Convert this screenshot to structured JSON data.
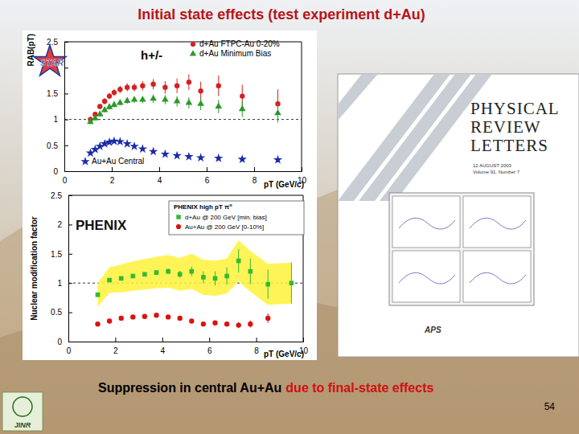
{
  "slide": {
    "title": "Initial state effects (test experiment d+Au)",
    "caption": [
      "Suppression in central Au+Au",
      "due to final-state effects"
    ],
    "page_number": 54,
    "logo": "JINR",
    "cover": {
      "lines": [
        "PHYSICAL",
        "REVIEW",
        "LETTERS"
      ],
      "date": "12 AUGUST 2003",
      "issue": "Volume 91, Number 7",
      "publisher": "APS"
    }
  },
  "chart_data": [
    {
      "type": "scatter",
      "title": "STAR",
      "subtitle": "h+/-",
      "x_label": "pT (GeV/c)",
      "y_label": "RAB(pT)",
      "xlim": [
        0,
        10
      ],
      "ylim": [
        0,
        2.5
      ],
      "xticks": [
        0,
        2,
        4,
        6,
        8,
        10
      ],
      "yticks": [
        0,
        0.5,
        1,
        1.5,
        2,
        2.5
      ],
      "reference_lines": [
        1
      ],
      "legend": "upper right",
      "series": [
        {
          "name": "d+Au FTPC-Au 0-20%",
          "color": "#d62020",
          "marker": "circle",
          "x": [
            1.1,
            1.3,
            1.5,
            1.7,
            1.9,
            2.1,
            2.35,
            2.65,
            2.95,
            3.3,
            3.75,
            4.25,
            4.75,
            5.25,
            5.75,
            6.5,
            7.5,
            9.0
          ],
          "values": [
            1.0,
            1.1,
            1.25,
            1.35,
            1.45,
            1.52,
            1.58,
            1.62,
            1.62,
            1.65,
            1.68,
            1.62,
            1.65,
            1.72,
            1.55,
            1.65,
            1.45,
            1.3
          ],
          "errors": [
            0.05,
            0.05,
            0.05,
            0.06,
            0.06,
            0.07,
            0.07,
            0.08,
            0.08,
            0.09,
            0.1,
            0.12,
            0.14,
            0.15,
            0.18,
            0.2,
            0.22,
            0.28
          ]
        },
        {
          "name": "d+Au Minimum Bias",
          "color": "#2a9a2a",
          "marker": "triangle",
          "x": [
            1.1,
            1.3,
            1.5,
            1.7,
            1.9,
            2.1,
            2.35,
            2.65,
            2.95,
            3.3,
            3.75,
            4.25,
            4.75,
            5.25,
            5.75,
            6.5,
            7.5,
            9.0
          ],
          "values": [
            0.95,
            1.02,
            1.1,
            1.18,
            1.24,
            1.28,
            1.32,
            1.36,
            1.38,
            1.38,
            1.4,
            1.38,
            1.35,
            1.32,
            1.3,
            1.25,
            1.2,
            1.12
          ],
          "errors": [
            0.04,
            0.04,
            0.04,
            0.04,
            0.05,
            0.05,
            0.05,
            0.06,
            0.06,
            0.07,
            0.08,
            0.09,
            0.1,
            0.11,
            0.12,
            0.13,
            0.15,
            0.18
          ]
        },
        {
          "name": "Au+Au Central",
          "color": "#1a2aa8",
          "marker": "star",
          "x": [
            1.1,
            1.3,
            1.5,
            1.7,
            1.9,
            2.1,
            2.35,
            2.65,
            2.95,
            3.3,
            3.75,
            4.25,
            4.75,
            5.25,
            5.75,
            6.5,
            7.5,
            9.0
          ],
          "values": [
            0.35,
            0.42,
            0.48,
            0.53,
            0.56,
            0.58,
            0.57,
            0.53,
            0.48,
            0.43,
            0.38,
            0.33,
            0.3,
            0.28,
            0.26,
            0.25,
            0.23,
            0.22
          ],
          "errors": [
            0.02,
            0.02,
            0.02,
            0.02,
            0.02,
            0.02,
            0.02,
            0.02,
            0.02,
            0.02,
            0.03,
            0.03,
            0.03,
            0.03,
            0.03,
            0.04,
            0.04,
            0.05
          ]
        }
      ]
    },
    {
      "type": "scatter",
      "title": "PHENIX",
      "subtitle": "PHENIX high pT π⁰",
      "x_label": "pT (GeV/c)",
      "y_label": "Nuclear modification factor",
      "xlim": [
        0,
        10
      ],
      "ylim": [
        0,
        2.5
      ],
      "xticks": [
        0,
        2,
        4,
        6,
        8,
        10
      ],
      "yticks": [
        0,
        0.5,
        1,
        1.5,
        2,
        2.5
      ],
      "reference_lines": [
        1
      ],
      "legend": "upper right",
      "series": [
        {
          "name": "d+Au @ 200 GeV [min. bias]",
          "color": "#33bb33",
          "marker": "square",
          "x": [
            1.25,
            1.75,
            2.25,
            2.75,
            3.25,
            3.75,
            4.25,
            4.75,
            5.25,
            5.75,
            6.25,
            6.75,
            7.25,
            7.75,
            8.5,
            9.5
          ],
          "values": [
            0.8,
            1.05,
            1.08,
            1.12,
            1.15,
            1.18,
            1.2,
            1.15,
            1.2,
            1.1,
            1.08,
            1.12,
            1.38,
            1.2,
            0.98,
            1.0
          ],
          "errors": [
            0.02,
            0.02,
            0.02,
            0.03,
            0.03,
            0.04,
            0.05,
            0.06,
            0.08,
            0.1,
            0.12,
            0.15,
            0.2,
            0.22,
            0.25,
            0.35
          ],
          "systematic_errors": [
            0.2,
            0.22,
            0.24,
            0.25,
            0.26,
            0.27,
            0.28,
            0.28,
            0.3,
            0.3,
            0.3,
            0.3,
            0.35,
            0.35,
            0.35,
            0.35
          ]
        },
        {
          "name": "Au+Au @ 200 GeV [0-10%]",
          "color": "#dd1111",
          "marker": "circle",
          "x": [
            1.25,
            1.75,
            2.25,
            2.75,
            3.25,
            3.75,
            4.25,
            4.75,
            5.25,
            5.75,
            6.25,
            6.75,
            7.25,
            7.75,
            8.5
          ],
          "values": [
            0.3,
            0.35,
            0.4,
            0.42,
            0.43,
            0.45,
            0.42,
            0.4,
            0.35,
            0.3,
            0.32,
            0.3,
            0.28,
            0.3,
            0.4
          ],
          "errors": [
            0.01,
            0.01,
            0.01,
            0.01,
            0.01,
            0.01,
            0.02,
            0.02,
            0.02,
            0.03,
            0.03,
            0.04,
            0.05,
            0.06,
            0.08
          ]
        }
      ]
    }
  ]
}
